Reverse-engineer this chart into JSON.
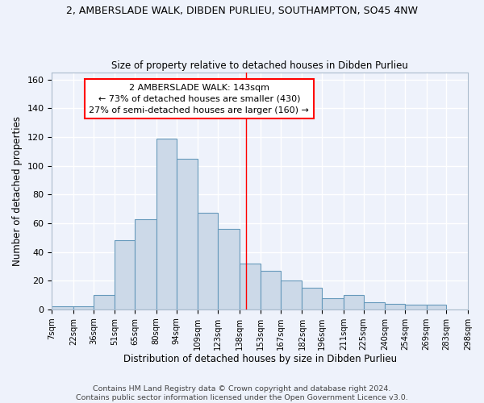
{
  "title": "2, AMBERSLADE WALK, DIBDEN PURLIEU, SOUTHAMPTON, SO45 4NW",
  "subtitle": "Size of property relative to detached houses in Dibden Purlieu",
  "xlabel": "Distribution of detached houses by size in Dibden Purlieu",
  "ylabel": "Number of detached properties",
  "bar_color": "#ccd9e8",
  "bar_edge_color": "#6699bb",
  "fig_background_color": "#eef2fb",
  "axes_background_color": "#eef2fb",
  "grid_color": "#ffffff",
  "annotation_text": "2 AMBERSLADE WALK: 143sqm\n← 73% of detached houses are smaller (430)\n27% of semi-detached houses are larger (160) →",
  "vline_x": 143,
  "vline_color": "red",
  "bin_edges": [
    7,
    22,
    36,
    51,
    65,
    80,
    94,
    109,
    123,
    138,
    153,
    167,
    182,
    196,
    211,
    225,
    240,
    254,
    269,
    283,
    298
  ],
  "bar_heights": [
    2,
    2,
    10,
    48,
    63,
    119,
    105,
    67,
    56,
    32,
    27,
    20,
    15,
    8,
    10,
    5,
    4,
    3,
    3,
    0
  ],
  "ylim": [
    0,
    165
  ],
  "yticks": [
    0,
    20,
    40,
    60,
    80,
    100,
    120,
    140,
    160
  ],
  "footer1": "Contains HM Land Registry data © Crown copyright and database right 2024.",
  "footer2": "Contains public sector information licensed under the Open Government Licence v3.0.",
  "tick_labels": [
    "7sqm",
    "22sqm",
    "36sqm",
    "51sqm",
    "65sqm",
    "80sqm",
    "94sqm",
    "109sqm",
    "123sqm",
    "138sqm",
    "153sqm",
    "167sqm",
    "182sqm",
    "196sqm",
    "211sqm",
    "225sqm",
    "240sqm",
    "254sqm",
    "269sqm",
    "283sqm",
    "298sqm"
  ],
  "title_fontsize": 9.0,
  "subtitle_fontsize": 8.5,
  "annotation_fontsize": 8.0,
  "ylabel_fontsize": 8.5,
  "xlabel_fontsize": 8.5,
  "tick_fontsize": 7.2,
  "ytick_fontsize": 8.0,
  "footer_fontsize": 6.8
}
